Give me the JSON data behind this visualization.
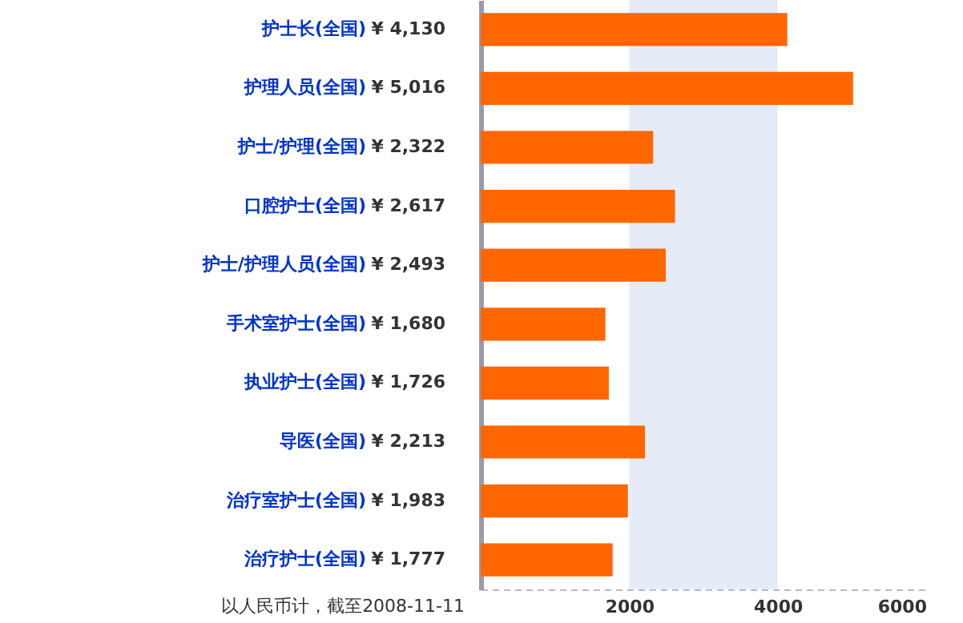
{
  "chart_data": {
    "type": "bar",
    "orientation": "horizontal",
    "categories": [
      "护士长(全国)",
      "护理人员(全国)",
      "护士/护理(全国)",
      "口腔护士(全国)",
      "护士/护理人员(全国)",
      "手术室护士(全国)",
      "执业护士(全国)",
      "导医(全国)",
      "治疗室护士(全国)",
      "治疗护士(全国)"
    ],
    "values": [
      4130,
      5016,
      2322,
      2617,
      2493,
      1680,
      1726,
      2213,
      1983,
      1777
    ],
    "value_labels": [
      "¥ 4,130",
      "¥ 5,016",
      "¥ 2,322",
      "¥ 2,617",
      "¥ 2,493",
      "¥ 1,680",
      "¥ 1,726",
      "¥ 2,213",
      "¥ 1,983",
      "¥ 1,777"
    ],
    "color": "#ff6600",
    "xlim": [
      0,
      6000
    ],
    "xticks": [
      2000,
      4000,
      6000
    ],
    "bands": [
      {
        "axis": "x",
        "from": 2000,
        "to": 4000,
        "color": "#e6ebf8"
      }
    ],
    "annotations": [
      "以人民币计，截至2008-11-11"
    ],
    "grid": false
  }
}
